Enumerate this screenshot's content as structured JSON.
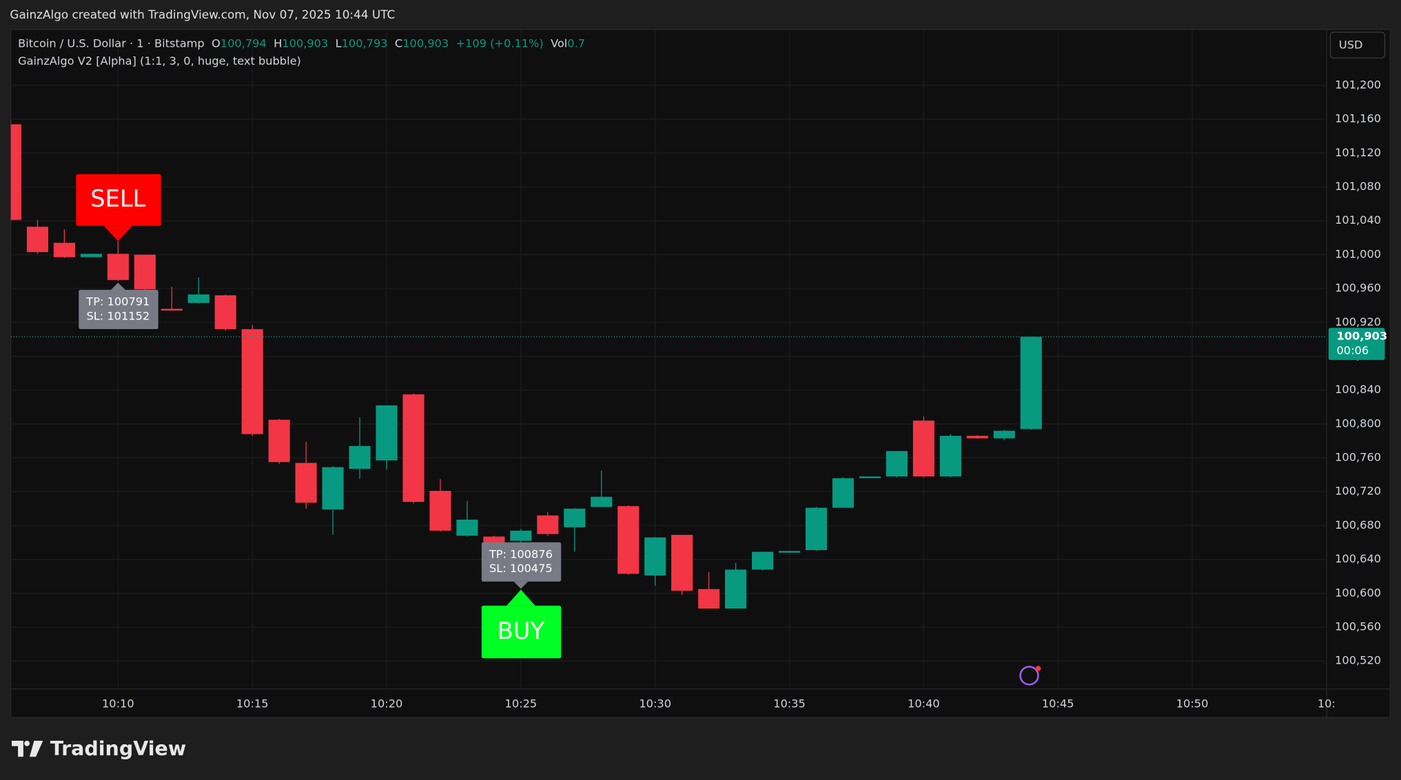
{
  "header": {
    "caption": "GainzAlgo created with TradingView.com, Nov 07, 2025 10:44 UTC"
  },
  "chart_data": {
    "type": "candlestick",
    "symbol": "Bitcoin / U.S. Dollar · 1 · Bitstamp",
    "indicator": "GainzAlgo V2 [Alpha] (1:1, 3, 0, huge, text bubble)",
    "ohlc_legend": {
      "o_label": "O",
      "open": {
        "value": 100794,
        "label": "100,794"
      },
      "h_label": "H",
      "high": {
        "value": 100903,
        "label": "100,903"
      },
      "l_label": "L",
      "low": {
        "value": 100793,
        "label": "100,793"
      },
      "c_label": "C",
      "close": {
        "value": 100903,
        "label": "100,903"
      },
      "change": "+109 (+0.11%)",
      "vol_label": "Vol",
      "volume": 0.7
    },
    "currency": "USD",
    "last_price": {
      "value": 100903,
      "label": "100,903"
    },
    "countdown": "00:06",
    "up_color": "#089981",
    "down_color": "#f23645",
    "categories": [
      null,
      null,
      null,
      null,
      "10:10",
      null,
      null,
      null,
      null,
      "10:15",
      null,
      null,
      null,
      null,
      "10:20",
      null,
      null,
      null,
      null,
      "10:25",
      null,
      null,
      null,
      null,
      "10:30",
      null,
      null,
      null,
      null,
      "10:35",
      null,
      null,
      null,
      null,
      "10:40",
      null,
      null,
      null,
      null,
      "10:45",
      null,
      null,
      null,
      null,
      "10:50",
      null,
      null,
      null,
      null,
      "10:"
    ],
    "open": [
      101154,
      101033,
      101014,
      100997,
      101001,
      101000,
      100936,
      100943,
      100952,
      100912,
      100805,
      100754,
      100699,
      100747,
      100757,
      100835,
      100721,
      100668,
      100667,
      100662,
      100692,
      100678,
      100702,
      100703,
      100621,
      100669,
      100605,
      100582,
      100628,
      100648,
      100651,
      100701,
      100736,
      100738,
      100804,
      100738,
      100786,
      100783,
      100794,
      null,
      null,
      null,
      null,
      null,
      null,
      null,
      null,
      null,
      null,
      null
    ],
    "high": [
      101159,
      101041,
      101030,
      101001,
      101016,
      101000,
      100962,
      100973,
      100953,
      100917,
      100806,
      100779,
      100750,
      100808,
      100822,
      100836,
      100735,
      100709,
      100668,
      100676,
      100696,
      100701,
      100745,
      100704,
      100666,
      100669,
      100625,
      100636,
      100649,
      100650,
      100702,
      100737,
      100738,
      100768,
      100809,
      100788,
      100787,
      100793,
      100903,
      null,
      null,
      null,
      null,
      null,
      null,
      null,
      null,
      null,
      null,
      null
    ],
    "low": [
      101040,
      101001,
      100996,
      100997,
      100969,
      100955,
      100934,
      100942,
      100910,
      100786,
      100753,
      100700,
      100669,
      100735,
      100746,
      100706,
      100673,
      100667,
      100655,
      100656,
      100668,
      100649,
      100702,
      100622,
      100609,
      100598,
      100582,
      100582,
      100627,
      100648,
      100650,
      100701,
      100736,
      100737,
      100737,
      100737,
      100783,
      100781,
      100793,
      null,
      null,
      null,
      null,
      null,
      null,
      null,
      null,
      null,
      null,
      null
    ],
    "close": [
      101041,
      101003,
      100997,
      101001,
      100970,
      100959,
      100934,
      100953,
      100912,
      100788,
      100755,
      100707,
      100749,
      100774,
      100822,
      100708,
      100674,
      100687,
      100660,
      100674,
      100670,
      100700,
      100714,
      100623,
      100666,
      100603,
      100582,
      100628,
      100649,
      100650,
      100701,
      100736,
      100738,
      100768,
      100738,
      100786,
      100783,
      100792,
      100903,
      null,
      null,
      null,
      null,
      null,
      null,
      null,
      null,
      null,
      null,
      null
    ],
    "ylim": [
      100487,
      101266
    ],
    "yticks": [
      {
        "value": 100520,
        "label": "100,520"
      },
      {
        "value": 100560,
        "label": "100,560"
      },
      {
        "value": 100600,
        "label": "100,600"
      },
      {
        "value": 100640,
        "label": "100,640"
      },
      {
        "value": 100680,
        "label": "100,680"
      },
      {
        "value": 100720,
        "label": "100,720"
      },
      {
        "value": 100760,
        "label": "100,760"
      },
      {
        "value": 100800,
        "label": "100,800"
      },
      {
        "value": 100840,
        "label": "100,840"
      },
      {
        "value": 100880,
        "label": "100,880"
      },
      {
        "value": 100920,
        "label": "100,920"
      },
      {
        "value": 100960,
        "label": "100,960"
      },
      {
        "value": 101000,
        "label": "101,000"
      },
      {
        "value": 101040,
        "label": "101,040"
      },
      {
        "value": 101080,
        "label": "101,080"
      },
      {
        "value": 101120,
        "label": "101,120"
      },
      {
        "value": 101160,
        "label": "101,160"
      },
      {
        "value": 101200,
        "label": "101,200"
      }
    ],
    "grid": true,
    "signals": [
      {
        "label": "SELL",
        "time": "10:10",
        "color": "#ff0000",
        "tp": "TP: 100791",
        "sl": "SL: 101152"
      },
      {
        "label": "BUY",
        "time": "10:25",
        "color": "#00ff22",
        "tp": "TP: 100876",
        "sl": "SL: 100475"
      }
    ]
  },
  "footer": {
    "brand": "TradingView"
  }
}
